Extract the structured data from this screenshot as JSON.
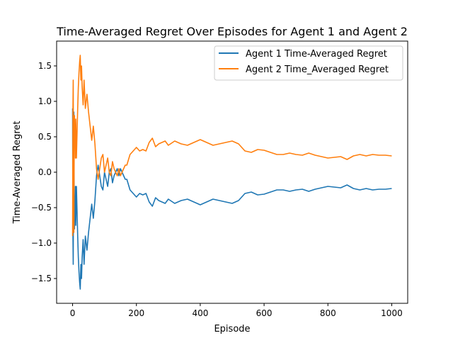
{
  "chart_data": {
    "type": "line",
    "title": "Time-Averaged Regret Over Episodes for Agent 1 and Agent 2",
    "xlabel": "Episode",
    "ylabel": "Time-Averaged Regret",
    "xlim": [
      -50,
      1050
    ],
    "ylim": [
      -1.85,
      1.85
    ],
    "xticks": [
      0,
      200,
      400,
      600,
      800,
      1000
    ],
    "xtick_labels": [
      "0",
      "200",
      "400",
      "600",
      "800",
      "1000"
    ],
    "yticks": [
      -1.5,
      -1.0,
      -0.5,
      0.0,
      0.5,
      1.0,
      1.5
    ],
    "ytick_labels": [
      "−1.5",
      "−1.0",
      "−0.5",
      "0.0",
      "0.5",
      "1.0",
      "1.5"
    ],
    "grid": false,
    "legend_position": "top-right",
    "series": [
      {
        "name": "Agent 1 Time-Averaged Regret",
        "color": "#1f77b4",
        "x": [
          0,
          1,
          2,
          3,
          4,
          5,
          6,
          7,
          8,
          9,
          10,
          12,
          14,
          16,
          18,
          20,
          22,
          24,
          26,
          28,
          30,
          33,
          36,
          40,
          45,
          50,
          55,
          60,
          65,
          70,
          75,
          80,
          85,
          90,
          95,
          100,
          105,
          110,
          115,
          120,
          125,
          130,
          135,
          140,
          145,
          150,
          155,
          160,
          165,
          170,
          180,
          190,
          200,
          210,
          220,
          230,
          240,
          250,
          260,
          270,
          280,
          290,
          300,
          320,
          340,
          360,
          380,
          400,
          420,
          440,
          460,
          480,
          500,
          520,
          540,
          560,
          580,
          600,
          620,
          640,
          660,
          680,
          700,
          720,
          740,
          760,
          780,
          800,
          820,
          840,
          860,
          880,
          900,
          920,
          940,
          960,
          980,
          1000
        ],
        "values": [
          0.9,
          -0.85,
          -1.3,
          0.1,
          0.85,
          -0.3,
          -0.8,
          -0.4,
          -0.6,
          -0.2,
          -0.75,
          -0.2,
          -0.55,
          -0.9,
          -1.2,
          -1.4,
          -1.55,
          -1.65,
          -1.3,
          -1.5,
          -1.2,
          -0.95,
          -1.3,
          -0.9,
          -1.1,
          -0.85,
          -0.65,
          -0.45,
          -0.65,
          -0.4,
          -0.05,
          0.1,
          -0.05,
          -0.2,
          -0.25,
          0.0,
          -0.1,
          -0.2,
          0.0,
          0.05,
          -0.15,
          -0.05,
          0.0,
          0.05,
          -0.05,
          0.05,
          0.0,
          -0.05,
          -0.1,
          -0.1,
          -0.25,
          -0.3,
          -0.35,
          -0.3,
          -0.32,
          -0.3,
          -0.42,
          -0.48,
          -0.36,
          -0.4,
          -0.42,
          -0.44,
          -0.38,
          -0.44,
          -0.4,
          -0.38,
          -0.42,
          -0.46,
          -0.42,
          -0.38,
          -0.4,
          -0.42,
          -0.44,
          -0.4,
          -0.3,
          -0.28,
          -0.32,
          -0.31,
          -0.28,
          -0.25,
          -0.25,
          -0.27,
          -0.25,
          -0.24,
          -0.27,
          -0.24,
          -0.22,
          -0.2,
          -0.21,
          -0.22,
          -0.18,
          -0.23,
          -0.25,
          -0.23,
          -0.25,
          -0.24,
          -0.24,
          -0.23
        ]
      },
      {
        "name": "Agent 2 Time_Averaged Regret",
        "color": "#ff7f0e",
        "x": [
          0,
          1,
          2,
          3,
          4,
          5,
          6,
          7,
          8,
          9,
          10,
          12,
          14,
          16,
          18,
          20,
          22,
          24,
          26,
          28,
          30,
          33,
          36,
          40,
          45,
          50,
          55,
          60,
          65,
          70,
          75,
          80,
          85,
          90,
          95,
          100,
          105,
          110,
          115,
          120,
          125,
          130,
          135,
          140,
          145,
          150,
          155,
          160,
          165,
          170,
          180,
          190,
          200,
          210,
          220,
          230,
          240,
          250,
          260,
          270,
          280,
          290,
          300,
          320,
          340,
          360,
          380,
          400,
          420,
          440,
          460,
          480,
          500,
          520,
          540,
          560,
          580,
          600,
          620,
          640,
          660,
          680,
          700,
          720,
          740,
          760,
          780,
          800,
          820,
          840,
          860,
          880,
          900,
          920,
          940,
          960,
          980,
          1000
        ],
        "values": [
          -0.9,
          0.85,
          1.3,
          -0.1,
          -0.85,
          0.3,
          0.8,
          0.4,
          0.6,
          0.2,
          0.75,
          0.2,
          0.55,
          0.9,
          1.2,
          1.4,
          1.55,
          1.65,
          1.3,
          1.5,
          1.2,
          0.95,
          1.3,
          0.9,
          1.1,
          0.85,
          0.65,
          0.45,
          0.65,
          0.4,
          0.05,
          -0.1,
          0.05,
          0.2,
          0.25,
          0.0,
          0.1,
          0.2,
          0.0,
          -0.05,
          0.15,
          0.05,
          0.0,
          -0.05,
          0.05,
          -0.05,
          0.0,
          0.05,
          0.1,
          0.1,
          0.25,
          0.3,
          0.35,
          0.3,
          0.32,
          0.3,
          0.42,
          0.48,
          0.36,
          0.4,
          0.42,
          0.44,
          0.38,
          0.44,
          0.4,
          0.38,
          0.42,
          0.46,
          0.42,
          0.38,
          0.4,
          0.42,
          0.44,
          0.4,
          0.3,
          0.28,
          0.32,
          0.31,
          0.28,
          0.25,
          0.25,
          0.27,
          0.25,
          0.24,
          0.27,
          0.24,
          0.22,
          0.2,
          0.21,
          0.22,
          0.18,
          0.23,
          0.25,
          0.23,
          0.25,
          0.24,
          0.24,
          0.23
        ]
      }
    ]
  }
}
